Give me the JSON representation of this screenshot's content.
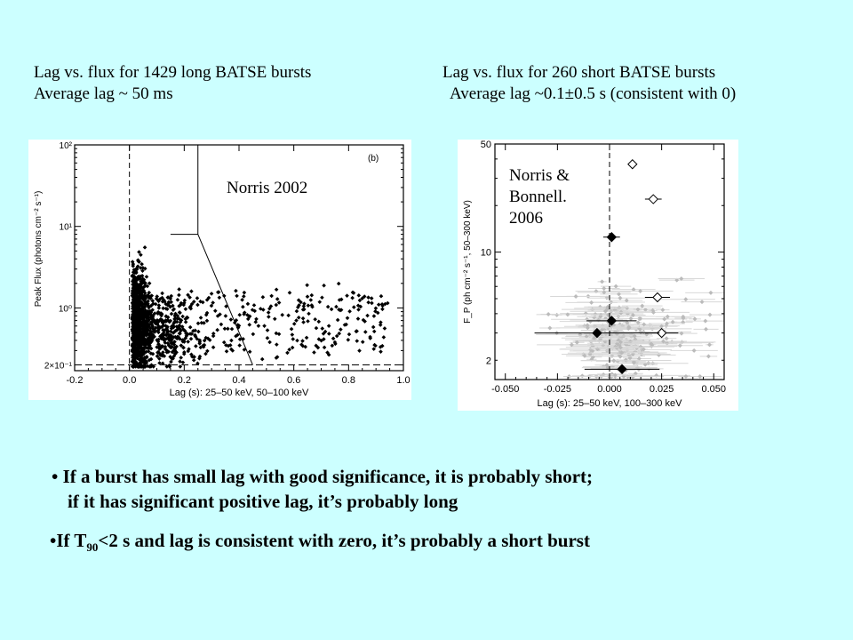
{
  "header": {
    "left_line1": "Lag vs. flux for 1429 long BATSE bursts",
    "left_line2": "Average lag ~ 50 ms",
    "right_line1": "Lag vs. flux for 260 short BATSE bursts",
    "right_line2": "Average lag ~0.1±0.5 s (consistent with 0)"
  },
  "chart_data": [
    {
      "type": "scatter",
      "annotation": "Norris 2002",
      "panel_label": "(b)",
      "xlabel": "Lag (s):  25–50 keV, 50–100 keV",
      "ylabel": "Peak Flux  (photons cm⁻² s⁻¹)",
      "xlim": [
        -0.2,
        1.0
      ],
      "ylim": [
        0.17,
        100
      ],
      "yscale": "log",
      "x_ticks": [
        "-0.2",
        "0.0",
        "0.2",
        "0.4",
        "0.6",
        "0.8",
        "1.0"
      ],
      "y_ticks": [
        {
          "value": 100,
          "label": "10²"
        },
        {
          "value": 10,
          "label": "10¹"
        },
        {
          "value": 1,
          "label": "10⁰"
        },
        {
          "value": 0.2,
          "label": "2×10⁻¹"
        }
      ],
      "n_points": 1429,
      "boundary_line": [
        [
          0.25,
          100
        ],
        [
          0.25,
          8
        ],
        [
          0.15,
          8
        ],
        [
          0.25,
          8
        ],
        [
          0.45,
          0.2
        ]
      ],
      "ref_lines": {
        "vertical_x": 0.0,
        "horizontal_y": 0.2
      },
      "point_color": "#000000"
    },
    {
      "type": "scatter",
      "annotation": "Norris & Bonnell. 2006",
      "xlabel": "Lag (s):  25–50 keV, 100–300 keV",
      "ylabel": "F_P  (ph cm⁻² s⁻¹, 50–300 keV)",
      "xlim": [
        -0.055,
        0.055
      ],
      "ylim": [
        1.5,
        50
      ],
      "yscale": "log",
      "x_ticks": [
        "-0.050",
        "-0.025",
        "0.000",
        "0.025",
        "0.050"
      ],
      "y_ticks": [
        {
          "value": 50,
          "label": "50"
        },
        {
          "value": 10,
          "label": "10"
        },
        {
          "value": 2,
          "label": "2"
        }
      ],
      "n_points": 260,
      "ref_lines": {
        "vertical_x": 0.0
      },
      "highlighted": [
        {
          "x": 0.011,
          "y": 37,
          "xerr": 0,
          "style": "open"
        },
        {
          "x": 0.021,
          "y": 22,
          "xerr": 0.004,
          "style": "open"
        },
        {
          "x": 0.001,
          "y": 12.5,
          "xerr": 0.004,
          "style": "filled"
        },
        {
          "x": 0.023,
          "y": 5.1,
          "xerr": 0.006,
          "style": "open"
        },
        {
          "x": 0.001,
          "y": 3.6,
          "xerr": 0.012,
          "style": "filled"
        },
        {
          "x": 0.025,
          "y": 3.0,
          "xerr": 0.008,
          "style": "open"
        },
        {
          "x": -0.006,
          "y": 3.0,
          "xerr": 0.03,
          "style": "filled"
        },
        {
          "x": 0.006,
          "y": 1.75,
          "xerr": 0.018,
          "style": "filled"
        }
      ],
      "point_color": "#bbbbbb"
    }
  ],
  "bullets": {
    "b1_line1": "If a burst has small lag with good significance, it is probably short;",
    "b1_line2": "if it has significant positive lag, it’s probably long",
    "b2_pre": "If T",
    "b2_sub": "90",
    "b2_post": "<2 s and lag is consistent with zero, it’s probably a short burst"
  }
}
